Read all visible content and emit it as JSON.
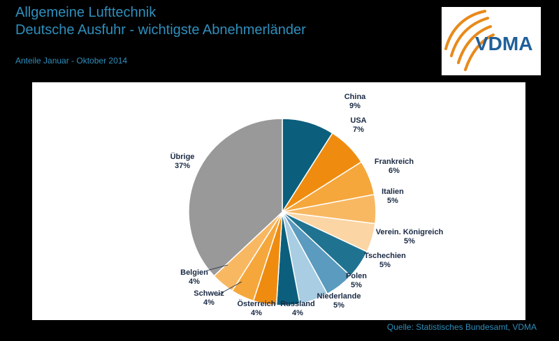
{
  "header": {
    "title_line1": "Allgemeine Lufttechnik",
    "title_line2": "Deutsche Ausfuhr - wichtigste Abnehmerländer",
    "subtitle": "Anteile Januar - Oktober 2014"
  },
  "logo": {
    "text": "VDMA",
    "text_color": "#1f5f9a",
    "swoosh_color": "#e88a1a"
  },
  "footer": {
    "source": "Quelle: Statistisches Bundesamt, VDMA"
  },
  "chart_data": {
    "type": "pie",
    "unit": "%",
    "slices": [
      {
        "name": "China",
        "value": 9,
        "label": "9%",
        "color": "#0b5f7d"
      },
      {
        "name": "USA",
        "value": 7,
        "label": "7%",
        "color": "#ef8c10"
      },
      {
        "name": "Frankreich",
        "value": 6,
        "label": "6%",
        "color": "#f5a73c"
      },
      {
        "name": "Italien",
        "value": 5,
        "label": "5%",
        "color": "#f8b862"
      },
      {
        "name": "Verein. Königreich",
        "value": 5,
        "label": "5%",
        "color": "#fbd5a4"
      },
      {
        "name": "Tschechien",
        "value": 5,
        "label": "5%",
        "color": "#1f7391"
      },
      {
        "name": "Polen",
        "value": 5,
        "label": "5%",
        "color": "#5a9bbf"
      },
      {
        "name": "Niederlande",
        "value": 5,
        "label": "5%",
        "color": "#a9cde2"
      },
      {
        "name": "Russland",
        "value": 4,
        "label": "4%",
        "color": "#0b5f7d"
      },
      {
        "name": "Österreich",
        "value": 4,
        "label": "4%",
        "color": "#ef8c10"
      },
      {
        "name": "Schweiz",
        "value": 4,
        "label": "4%",
        "color": "#f5a73c"
      },
      {
        "name": "Belgien",
        "value": 4,
        "label": "4%",
        "color": "#f8b862"
      },
      {
        "name": "Übrige",
        "value": 37,
        "label": "37%",
        "color": "#999999"
      }
    ]
  }
}
